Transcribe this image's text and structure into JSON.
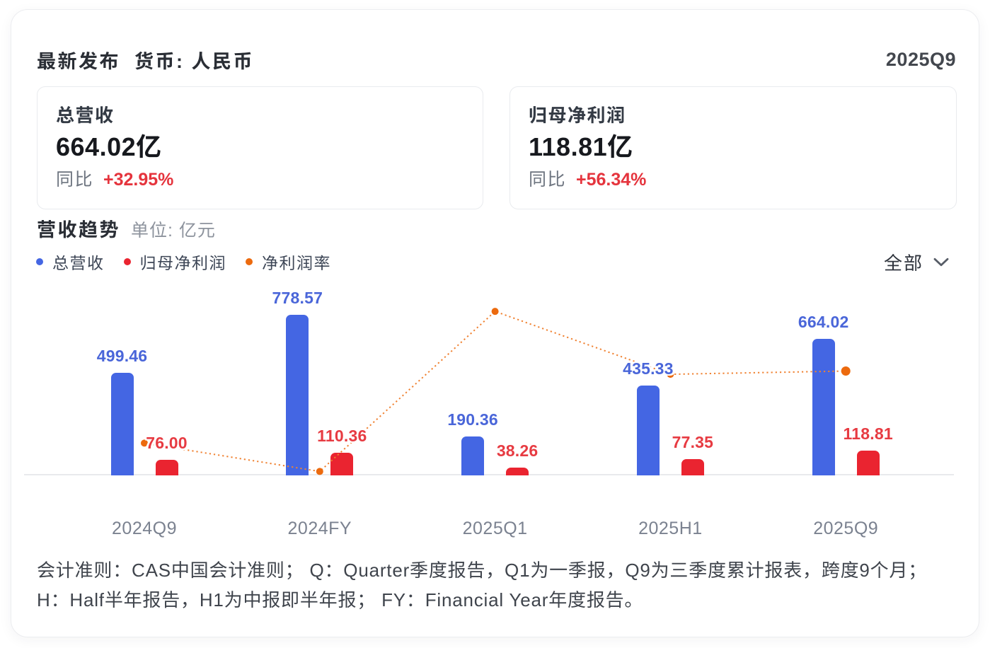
{
  "header": {
    "published_label": "最新发布",
    "currency_label": "货币: 人民币",
    "period": "2025Q9"
  },
  "stat_cards": [
    {
      "label": "总营收",
      "value": "664.02亿",
      "yoy_label": "同比",
      "yoy_value": "+32.95%"
    },
    {
      "label": "归母净利润",
      "value": "118.81亿",
      "yoy_label": "同比",
      "yoy_value": "+56.34%"
    }
  ],
  "section": {
    "title": "营收趋势",
    "unit": "单位: 亿元"
  },
  "legend": [
    {
      "label": "总营收",
      "color": "#4466e3"
    },
    {
      "label": "归母净利润",
      "color": "#ea2430"
    },
    {
      "label": "净利润率",
      "color": "#ec6a0e"
    }
  ],
  "filter": {
    "label": "全部"
  },
  "chart_data": {
    "type": "bar",
    "categories": [
      "2024Q9",
      "2024FY",
      "2025Q1",
      "2025H1",
      "2025Q9"
    ],
    "series": [
      {
        "name": "总营收",
        "type": "bar",
        "color": "#4466e3",
        "label_color": "#4a66d9",
        "values": [
          499.46,
          778.57,
          190.36,
          435.33,
          664.02
        ],
        "labels": [
          "499.46",
          "778.57",
          "190.36",
          "435.33",
          "664.02"
        ]
      },
      {
        "name": "归母净利润",
        "type": "bar",
        "color": "#ea2430",
        "label_color": "#e73b42",
        "values": [
          76.0,
          110.36,
          38.26,
          77.35,
          118.81
        ],
        "labels": [
          "76.00",
          "110.36",
          "38.26",
          "77.35",
          "118.81"
        ]
      },
      {
        "name": "净利润率",
        "type": "line",
        "color": "#ec6a0e",
        "values_pct": [
          15.22,
          14.17,
          20.1,
          17.77,
          17.89
        ]
      }
    ],
    "title": "营收趋势",
    "unit": "亿元",
    "ylabel": "",
    "xlabel": "",
    "ylim": [
      0,
      820
    ],
    "y2lim_pct": [
      13.9,
      21.5
    ],
    "grid": false,
    "legend_position": "top-left"
  },
  "footnote": {
    "lines": [
      "会计准则：CAS中国会计准则； Q：Quarter季度报告，Q1为一季报，Q9为三季度累计报表，跨度9个月；",
      "H：Half半年报告，H1为中报即半年报； FY：Financial Year年度报告。"
    ]
  }
}
